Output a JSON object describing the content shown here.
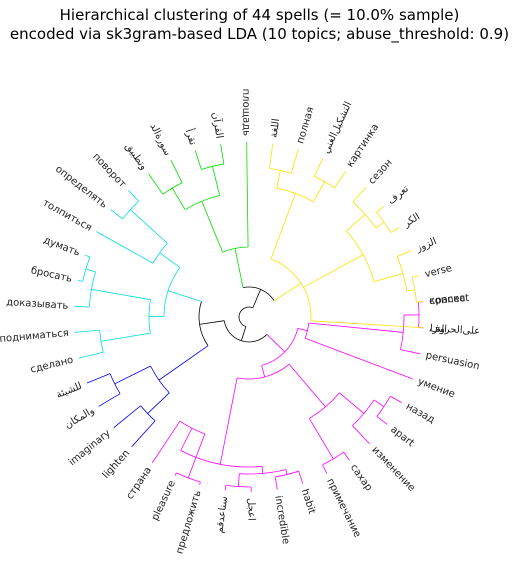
{
  "chart_data": {
    "type": "dendrogram",
    "layout": "radial",
    "title_lines": [
      "Hierarchical clustering of 44 spells (= 10.0% sample)",
      "encoded via sk3gram-based LDA (10 topics; abuse_threshold: 0.9)"
    ],
    "leaf_count": 44,
    "colors": {
      "green": "#00e000",
      "yellow": "#ffe000",
      "cyan": "#00dddd",
      "blue": "#0000ee",
      "magenta": "#ff00ff",
      "link": "#000000"
    },
    "leaves": [
      {
        "label": "connect",
        "cluster": "magenta"
      },
      {
        "label": "اﻟﻨﺰﻟ",
        "cluster": "magenta"
      },
      {
        "label": "persuasion",
        "cluster": "magenta"
      },
      {
        "label": "умение",
        "cluster": "magenta"
      },
      {
        "label": "назад",
        "cluster": "magenta"
      },
      {
        "label": "apart",
        "cluster": "magenta"
      },
      {
        "label": "изменение",
        "cluster": "magenta"
      },
      {
        "label": "сахар",
        "cluster": "magenta"
      },
      {
        "label": "примечание",
        "cluster": "magenta"
      },
      {
        "label": "habit",
        "cluster": "magenta"
      },
      {
        "label": "incredible",
        "cluster": "magenta"
      },
      {
        "label": "ﺍﻋﺠﻞ",
        "cluster": "magenta"
      },
      {
        "label": "ﺳﻨﺎﻋﺪﻗﻢ",
        "cluster": "magenta"
      },
      {
        "label": "предложить",
        "cluster": "magenta"
      },
      {
        "label": "pleasure",
        "cluster": "magenta"
      },
      {
        "label": "страна",
        "cluster": "magenta"
      },
      {
        "label": "lighten",
        "cluster": "blue"
      },
      {
        "label": "imaginary",
        "cluster": "blue"
      },
      {
        "label": "ﻭﺍﻟﻤﻜﺎﻥ",
        "cluster": "blue"
      },
      {
        "label": "ﻟﻠﺸﻴﺌﺔ",
        "cluster": "blue"
      },
      {
        "label": "сделано",
        "cluster": "cyan"
      },
      {
        "label": "подниматься",
        "cluster": "cyan"
      },
      {
        "label": "доказывать",
        "cluster": "cyan"
      },
      {
        "label": "бросать",
        "cluster": "cyan"
      },
      {
        "label": "думать",
        "cluster": "cyan"
      },
      {
        "label": "толпиться",
        "cluster": "cyan"
      },
      {
        "label": "определять",
        "cluster": "cyan"
      },
      {
        "label": "поворот",
        "cluster": "cyan"
      },
      {
        "label": "ﻭﺗﻄﺒﻴﻖ",
        "cluster": "green"
      },
      {
        "label": "ﺳﻮﺭﺓﺍﻟﺪ",
        "cluster": "green"
      },
      {
        "label": "ﺗﻘﺮﺃ",
        "cluster": "green"
      },
      {
        "label": "ﺍﻟﻘﺮﺁﻥ",
        "cluster": "green"
      },
      {
        "label": "площадь",
        "cluster": "green"
      },
      {
        "label": "ﺍﻟﻠﻐﺔ",
        "cluster": "yellow"
      },
      {
        "label": "полная",
        "cluster": "yellow"
      },
      {
        "label": "ﺍﻟﺘﺸﻜﻴﻞﺍﻟﻐﻨﻲ",
        "cluster": "yellow"
      },
      {
        "label": "картинка",
        "cluster": "yellow"
      },
      {
        "label": "сезон",
        "cluster": "yellow"
      },
      {
        "label": "ﺗﻌﺮﻑ",
        "cluster": "yellow"
      },
      {
        "label": "ﺍﻟﻜﺮ",
        "cluster": "yellow"
      },
      {
        "label": "ﺍﻟﺰﻭﺯ",
        "cluster": "yellow"
      },
      {
        "label": "verse",
        "cluster": "yellow"
      },
      {
        "label": "краска",
        "cluster": "yellow"
      },
      {
        "label": "ﻋﻠﻰﺍﻟﺤﺮﻭﻑ",
        "cluster": "yellow"
      }
    ]
  }
}
